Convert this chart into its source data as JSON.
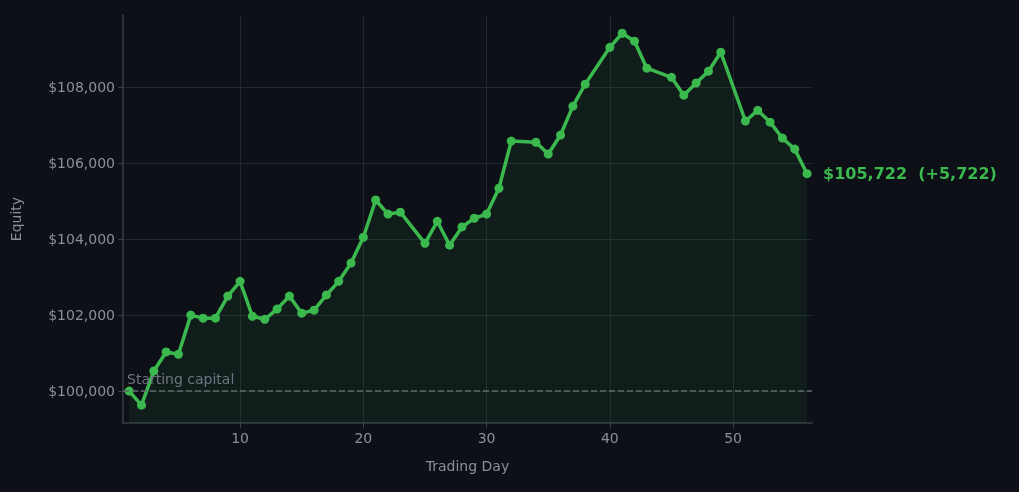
{
  "chart_data": {
    "type": "area",
    "xlabel": "Trading Day",
    "ylabel": "Equity",
    "x": [
      1,
      2,
      3,
      4,
      5,
      6,
      7,
      8,
      9,
      10,
      11,
      12,
      13,
      14,
      15,
      16,
      17,
      18,
      19,
      20,
      21,
      22,
      23,
      25,
      26,
      27,
      28,
      29,
      30,
      31,
      32,
      34,
      35,
      36,
      37,
      38,
      40,
      41,
      42,
      43,
      45,
      46,
      47,
      48,
      49,
      51,
      52,
      53,
      54,
      55,
      56
    ],
    "series": [
      {
        "color": "#3cb94e",
        "values": [
          100000,
          99630,
          100530,
          101030,
          100970,
          102000,
          101920,
          101920,
          102500,
          102890,
          101970,
          101890,
          102160,
          102500,
          102050,
          102130,
          102530,
          102890,
          103370,
          104050,
          105030,
          104660,
          104710,
          103890,
          104470,
          103840,
          104320,
          104550,
          104660,
          105340,
          106580,
          106550,
          106240,
          106740,
          107500,
          108080,
          109050,
          109420,
          109210,
          108500,
          108260,
          107790,
          108110,
          108420,
          108920,
          107110,
          107390,
          107080,
          106660,
          106370,
          105722
        ]
      }
    ],
    "xlim": [
      0.5,
      56.4
    ],
    "ylim": [
      99160,
      109900
    ],
    "xticks": [
      10,
      20,
      30,
      40,
      50
    ],
    "yticks": [
      {
        "value": 100000,
        "label": "$100,000"
      },
      {
        "value": 102000,
        "label": "$102,000"
      },
      {
        "value": 104000,
        "label": "$104,000"
      },
      {
        "value": 106000,
        "label": "$106,000"
      },
      {
        "value": 108000,
        "label": "$108,000"
      }
    ],
    "ref_lines": [
      {
        "axis": "y",
        "value": 100000,
        "label": "Starting capital",
        "color": "#5f6b66",
        "line_style": "dashed"
      }
    ],
    "annotations": [
      {
        "text": "$105,722  (+5,722)",
        "x": 56,
        "y": 105722
      }
    ],
    "grid": true,
    "marker": "circle",
    "line_style": "solid"
  }
}
